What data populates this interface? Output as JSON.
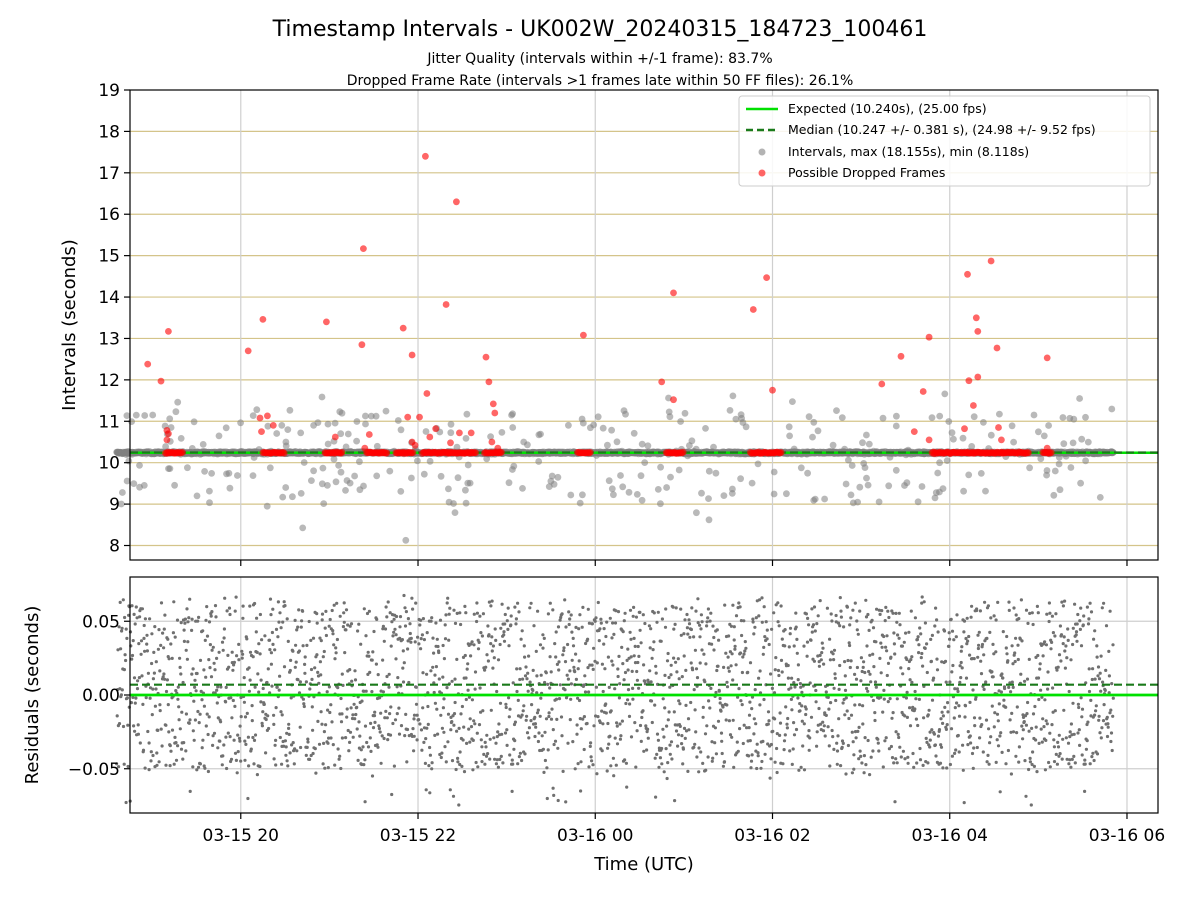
{
  "chart_data": [
    {
      "type": "scatter",
      "title": "Timestamp Intervals - UK002W_20240315_184723_100461",
      "subtitle_lines": [
        "Jitter Quality (intervals within +/-1 frame): 83.7%",
        "Dropped Frame Rate (intervals >1 frames late within 50 FF files): 26.1%"
      ],
      "ylabel": "Intervals (seconds)",
      "ylim": [
        7.65,
        19.0
      ],
      "yticks": [
        8,
        9,
        10,
        11,
        12,
        13,
        14,
        15,
        16,
        17,
        18,
        19
      ],
      "x_range_hours_since_0315_1800": [
        0.75,
        12.35
      ],
      "grid": "horizontal lines at integer seconds (tan), vertical lines at x ticks (gray)",
      "legend": {
        "placement": "top-right",
        "entries": [
          {
            "label": "Expected (10.240s), (25.00 fps)",
            "style": "line",
            "color": "#00e000"
          },
          {
            "label": "Median (10.247 +/- 0.381 s), (24.98 +/- 9.52 fps)",
            "style": "dashed",
            "color": "#1a7a1a"
          },
          {
            "label": "Intervals, max (18.155s), min (8.118s)",
            "style": "dot",
            "color": "#808080"
          },
          {
            "label": "Possible Dropped Frames",
            "style": "dot",
            "color": "#ff0000"
          }
        ]
      },
      "expected_line": 10.24,
      "median_line": 10.247,
      "series": [
        {
          "name": "Possible Dropped Frames",
          "color": "#ff0000",
          "points": [
            [
              "03-15 18:57",
              12.38
            ],
            [
              "03-15 19:06",
              11.97
            ],
            [
              "03-15 19:11",
              13.17
            ],
            [
              "03-15 19:10",
              10.78
            ],
            [
              "03-15 19:11",
              10.7
            ],
            [
              "03-15 19:10",
              10.55
            ],
            [
              "03-15 20:05",
              12.7
            ],
            [
              "03-15 20:15",
              13.46
            ],
            [
              "03-15 20:13",
              11.08
            ],
            [
              "03-15 20:18",
              11.13
            ],
            [
              "03-15 20:22",
              10.9
            ],
            [
              "03-15 20:14",
              10.75
            ],
            [
              "03-15 20:58",
              13.4
            ],
            [
              "03-15 21:04",
              10.62
            ],
            [
              "03-15 21:22",
              12.85
            ],
            [
              "03-15 21:23",
              15.17
            ],
            [
              "03-15 21:27",
              10.68
            ],
            [
              "03-15 21:24",
              10.35
            ],
            [
              "03-15 21:50",
              13.25
            ],
            [
              "03-15 21:53",
              11.1
            ],
            [
              "03-15 21:56",
              12.6
            ],
            [
              "03-15 21:56",
              10.5
            ],
            [
              "03-15 21:58",
              10.42
            ],
            [
              "03-15 22:01",
              11.1
            ],
            [
              "03-15 22:05",
              17.4
            ],
            [
              "03-15 22:06",
              11.67
            ],
            [
              "03-15 22:08",
              10.62
            ],
            [
              "03-15 22:12",
              10.82
            ],
            [
              "03-15 22:19",
              13.82
            ],
            [
              "03-15 22:26",
              16.3
            ],
            [
              "03-15 22:22",
              10.48
            ],
            [
              "03-15 22:28",
              10.72
            ],
            [
              "03-15 22:36",
              10.72
            ],
            [
              "03-15 22:46",
              12.55
            ],
            [
              "03-15 22:48",
              11.95
            ],
            [
              "03-15 22:51",
              11.42
            ],
            [
              "03-15 22:52",
              11.2
            ],
            [
              "03-15 22:50",
              10.5
            ],
            [
              "03-15 22:54",
              10.35
            ],
            [
              "03-15 23:52",
              13.08
            ],
            [
              "03-16 00:45",
              11.95
            ],
            [
              "03-16 00:53",
              11.52
            ],
            [
              "03-16 00:53",
              14.1
            ],
            [
              "03-16 01:47",
              13.7
            ],
            [
              "03-16 01:56",
              14.47
            ],
            [
              "03-16 02:00",
              11.75
            ],
            [
              "03-16 03:14",
              11.9
            ],
            [
              "03-16 03:27",
              12.57
            ],
            [
              "03-16 03:36",
              10.75
            ],
            [
              "03-16 03:42",
              11.72
            ],
            [
              "03-16 03:46",
              13.03
            ],
            [
              "03-16 03:46",
              10.55
            ],
            [
              "03-16 04:10",
              10.82
            ],
            [
              "03-16 04:12",
              14.55
            ],
            [
              "03-16 04:13",
              11.98
            ],
            [
              "03-16 04:18",
              13.5
            ],
            [
              "03-16 04:19",
              13.17
            ],
            [
              "03-16 04:19",
              12.07
            ],
            [
              "03-16 04:16",
              11.38
            ],
            [
              "03-16 04:28",
              14.87
            ],
            [
              "03-16 04:32",
              12.77
            ],
            [
              "03-16 04:33",
              10.85
            ],
            [
              "03-16 04:35",
              10.55
            ],
            [
              "03-16 05:06",
              12.53
            ],
            [
              "03-16 05:06",
              10.35
            ]
          ]
        },
        {
          "name": "Intervals, max (18.155s), min (8.118s)",
          "color": "#808080",
          "description_of_distribution": "dense band of grey points around 10.24 s from 03-15 18:36 to 03-16 05:50, with outliers spread between 8.1 and 11.7 s",
          "min": 8.118,
          "max": 18.155
        }
      ],
      "xticks": [
        "03-15 20",
        "03-15 22",
        "03-16 00",
        "03-16 02",
        "03-16 04",
        "03-16 06"
      ]
    },
    {
      "type": "scatter",
      "xlabel": "Time (UTC)",
      "ylabel": "Residuals (seconds)",
      "ylim": [
        -0.08,
        0.08
      ],
      "yticks": [
        "−0.05",
        "0.00",
        "0.05"
      ],
      "xticks": [
        "03-15 20",
        "03-15 22",
        "03-16 00",
        "03-16 02",
        "03-16 04",
        "03-16 06"
      ],
      "grid": "on",
      "expected_line": 0.0,
      "median_line": 0.007,
      "series": [
        {
          "name": "Residuals",
          "color": "#707070",
          "description_of_distribution": "uniform noise of grey points spanning roughly -0.06 to 0.07 s across the full time range, with a few outliers near -0.075"
        }
      ]
    }
  ]
}
